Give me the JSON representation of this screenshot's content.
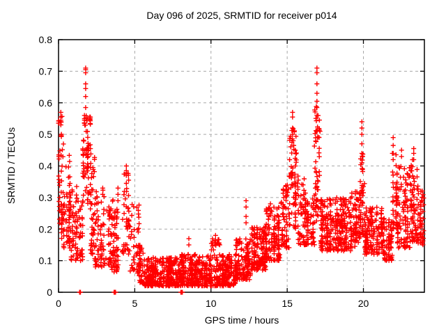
{
  "chart_data": {
    "type": "scatter",
    "title": "Day 096 of 2025, SRMTID for receiver p014",
    "xlabel": "GPS time / hours",
    "ylabel": "SRMTID / TECUs",
    "xlim": [
      0,
      24
    ],
    "ylim": [
      0,
      0.8
    ],
    "xticks": {
      "values": [
        0,
        5,
        10,
        15,
        20
      ],
      "labels": [
        "0",
        "5",
        "10",
        "15",
        "20"
      ]
    },
    "yticks": {
      "values": [
        0,
        0.1,
        0.2,
        0.3,
        0.4,
        0.5,
        0.6,
        0.7,
        0.8
      ],
      "labels": [
        "0",
        "0.1",
        "0.2",
        "0.3",
        "0.4",
        "0.5",
        "0.6",
        "0.7",
        "0.8"
      ]
    },
    "grid": true,
    "legend": "none",
    "grid_color": "#a8a8a8",
    "axis_color": "#000000",
    "marker": {
      "shape": "plus",
      "color": "#ff0000",
      "size": 7
    },
    "description": "Diurnal SRMTID scatter: high variance near local night (0-2h and 15-24h) with spikes to ~0.71 TECUs at ~1.8h and ~17h, quiet low band ~0.02-0.12 TECUs between 5.5h and 11.5h, rising again after 12h.",
    "envelope_bins": [
      [
        0.0,
        0.3,
        0.17,
        0.57,
        45,
        1.2
      ],
      [
        0.3,
        0.8,
        0.14,
        0.44,
        60,
        1.4
      ],
      [
        0.8,
        1.3,
        0.1,
        0.34,
        50,
        1.4
      ],
      [
        1.3,
        1.6,
        0.1,
        0.3,
        30,
        1.4
      ],
      [
        1.6,
        2.1,
        0.28,
        0.56,
        70,
        1.1
      ],
      [
        2.1,
        2.4,
        0.12,
        0.45,
        45,
        1.5
      ],
      [
        2.4,
        3.0,
        0.08,
        0.33,
        60,
        1.5
      ],
      [
        3.0,
        3.6,
        0.07,
        0.3,
        55,
        1.5
      ],
      [
        3.6,
        4.1,
        0.06,
        0.27,
        45,
        1.5
      ],
      [
        4.2,
        4.65,
        0.12,
        0.4,
        45,
        1.3
      ],
      [
        4.65,
        5.3,
        0.06,
        0.28,
        45,
        1.6
      ],
      [
        5.3,
        5.6,
        0.03,
        0.15,
        35,
        1.6
      ],
      [
        5.6,
        8.0,
        0.02,
        0.11,
        330,
        1.5
      ],
      [
        8.0,
        10.0,
        0.02,
        0.12,
        280,
        1.5
      ],
      [
        10.0,
        10.6,
        0.02,
        0.18,
        70,
        1.7
      ],
      [
        10.6,
        11.6,
        0.02,
        0.12,
        140,
        1.5
      ],
      [
        11.6,
        12.6,
        0.04,
        0.17,
        130,
        1.5
      ],
      [
        12.6,
        13.6,
        0.07,
        0.21,
        140,
        1.4
      ],
      [
        13.6,
        14.6,
        0.1,
        0.27,
        130,
        1.4
      ],
      [
        14.6,
        15.1,
        0.14,
        0.34,
        60,
        1.3
      ],
      [
        15.1,
        15.6,
        0.2,
        0.52,
        70,
        1.1
      ],
      [
        15.6,
        16.3,
        0.15,
        0.37,
        70,
        1.4
      ],
      [
        16.3,
        16.8,
        0.15,
        0.3,
        50,
        1.3
      ],
      [
        16.8,
        17.2,
        0.22,
        0.6,
        55,
        1.0
      ],
      [
        17.2,
        18.2,
        0.13,
        0.3,
        130,
        1.3
      ],
      [
        18.2,
        19.2,
        0.13,
        0.3,
        130,
        1.3
      ],
      [
        19.2,
        19.8,
        0.14,
        0.32,
        70,
        1.3
      ],
      [
        19.8,
        20.1,
        0.18,
        0.44,
        40,
        1.2
      ],
      [
        20.1,
        21.3,
        0.12,
        0.27,
        150,
        1.3
      ],
      [
        21.3,
        21.9,
        0.1,
        0.24,
        70,
        1.4
      ],
      [
        21.9,
        22.2,
        0.2,
        0.44,
        35,
        1.2
      ],
      [
        22.2,
        23.1,
        0.14,
        0.4,
        110,
        1.4
      ],
      [
        23.1,
        23.6,
        0.16,
        0.42,
        70,
        1.3
      ],
      [
        23.6,
        23.95,
        0.15,
        0.33,
        45,
        1.3
      ]
    ],
    "spike_points": [
      {
        "x": 0.02,
        "ys": [
          0.43,
          0.435
        ]
      },
      {
        "x": 0.15,
        "ys": [
          0.57,
          0.555,
          0.545,
          0.54,
          0.53
        ]
      },
      {
        "x": 1.7,
        "ys": [
          0.545,
          0.55,
          0.56,
          0.535
        ]
      },
      {
        "x": 1.78,
        "ys": [
          0.71,
          0.705,
          0.695,
          0.66,
          0.645,
          0.62,
          0.585
        ]
      },
      {
        "x": 2.9,
        "ys": [
          0.33,
          0.31
        ]
      },
      {
        "x": 3.9,
        "ys": [
          0.33,
          0.31,
          0.29
        ]
      },
      {
        "x": 4.45,
        "ys": [
          0.4,
          0.385,
          0.37,
          0.345
        ]
      },
      {
        "x": 8.55,
        "ys": [
          0.17,
          0.15
        ]
      },
      {
        "x": 10.3,
        "ys": [
          0.18,
          0.165,
          0.15
        ]
      },
      {
        "x": 12.3,
        "ys": [
          0.29,
          0.27,
          0.24,
          0.22
        ]
      },
      {
        "x": 13.9,
        "ys": [
          0.28,
          0.25
        ]
      },
      {
        "x": 15.35,
        "ys": [
          0.57,
          0.555,
          0.52,
          0.5
        ]
      },
      {
        "x": 16.95,
        "ys": [
          0.71,
          0.695,
          0.66,
          0.63,
          0.605,
          0.585,
          0.56
        ]
      },
      {
        "x": 19.9,
        "ys": [
          0.54,
          0.52,
          0.5,
          0.47,
          0.44,
          0.41
        ]
      },
      {
        "x": 21.95,
        "ys": [
          0.49,
          0.465,
          0.44,
          0.42
        ]
      },
      {
        "x": 22.5,
        "ys": [
          0.45,
          0.43
        ]
      },
      {
        "x": 23.3,
        "ys": [
          0.455,
          0.44,
          0.42
        ]
      }
    ],
    "zero_clusters": [
      {
        "x": 1.38,
        "n": 1
      },
      {
        "x": 1.44,
        "n": 1
      },
      {
        "x": 3.7,
        "n": 5
      },
      {
        "x": 8.06,
        "n": 5
      }
    ]
  }
}
